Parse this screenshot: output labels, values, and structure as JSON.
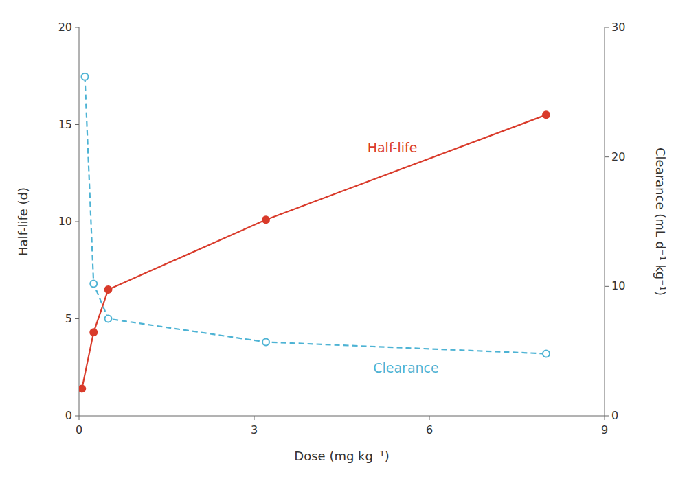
{
  "chart_data": {
    "type": "line",
    "x_label": "Dose (mg kg⁻¹)",
    "y_label": "Half-life (d)",
    "y2_label": "Clearance (mL d⁻¹ kg⁻¹)",
    "xlim": [
      0,
      9
    ],
    "xticks": [
      0,
      3,
      6,
      9
    ],
    "ylim": [
      0,
      20
    ],
    "yticks": [
      0,
      5,
      10,
      15,
      20
    ],
    "y2lim": [
      0,
      30
    ],
    "y2ticks": [
      0,
      10,
      20,
      30
    ],
    "grid": false,
    "series": [
      {
        "name": "Half-life",
        "color": "#d93b2b",
        "marker": "circle",
        "line_style": "solid",
        "x": [
          0.05,
          0.25,
          0.5,
          3.2,
          8.0
        ],
        "values": [
          1.4,
          4.3,
          6.5,
          10.1,
          15.5
        ]
      },
      {
        "name": "Clearance",
        "color": "#4db3d4",
        "marker": "open-circle",
        "line_style": "dashed",
        "axis": "y2",
        "x": [
          0.1,
          0.25,
          0.5,
          3.2,
          8.0
        ],
        "values": [
          26.2,
          10.2,
          7.5,
          5.7,
          4.8
        ]
      }
    ]
  }
}
